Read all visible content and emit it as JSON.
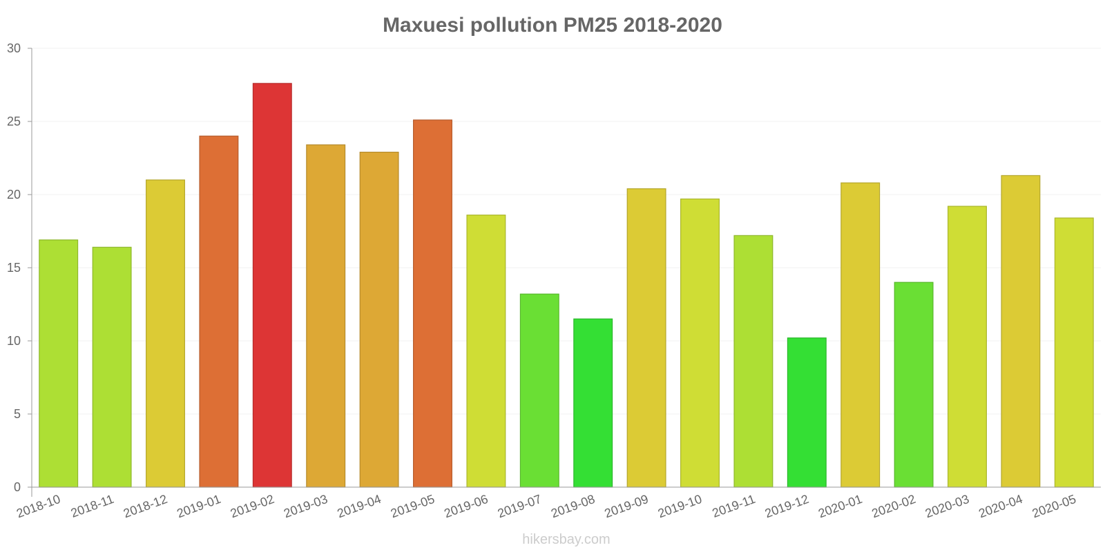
{
  "chart_data": {
    "type": "bar",
    "title": "Maxuesi pollution PM25 2018-2020",
    "xlabel": "",
    "ylabel": "",
    "ylim": [
      0,
      30
    ],
    "yticks": [
      0,
      5,
      10,
      15,
      20,
      25,
      30
    ],
    "grid": true,
    "categories": [
      "2018-10",
      "2018-11",
      "2018-12",
      "2019-01",
      "2019-02",
      "2019-03",
      "2019-04",
      "2019-05",
      "2019-06",
      "2019-07",
      "2019-08",
      "2019-09",
      "2019-10",
      "2019-11",
      "2019-12",
      "2020-01",
      "2020-02",
      "2020-03",
      "2020-04",
      "2020-05"
    ],
    "values": [
      16.9,
      16.4,
      21.0,
      24.0,
      27.6,
      23.4,
      22.9,
      25.1,
      18.6,
      13.2,
      11.5,
      20.4,
      19.7,
      17.2,
      10.2,
      20.8,
      14.0,
      19.2,
      21.3,
      18.4
    ],
    "colors": [
      "#addf34",
      "#addf34",
      "#dccb35",
      "#dd6f35",
      "#dd3535",
      "#dda835",
      "#dda835",
      "#dd6f35",
      "#cfdd35",
      "#6adf34",
      "#34df34",
      "#dccb35",
      "#cfdd35",
      "#addf34",
      "#34df34",
      "#dccb35",
      "#6adf34",
      "#cfdd35",
      "#dccb35",
      "#cfdd35"
    ]
  },
  "watermark": "hikersbay.com"
}
